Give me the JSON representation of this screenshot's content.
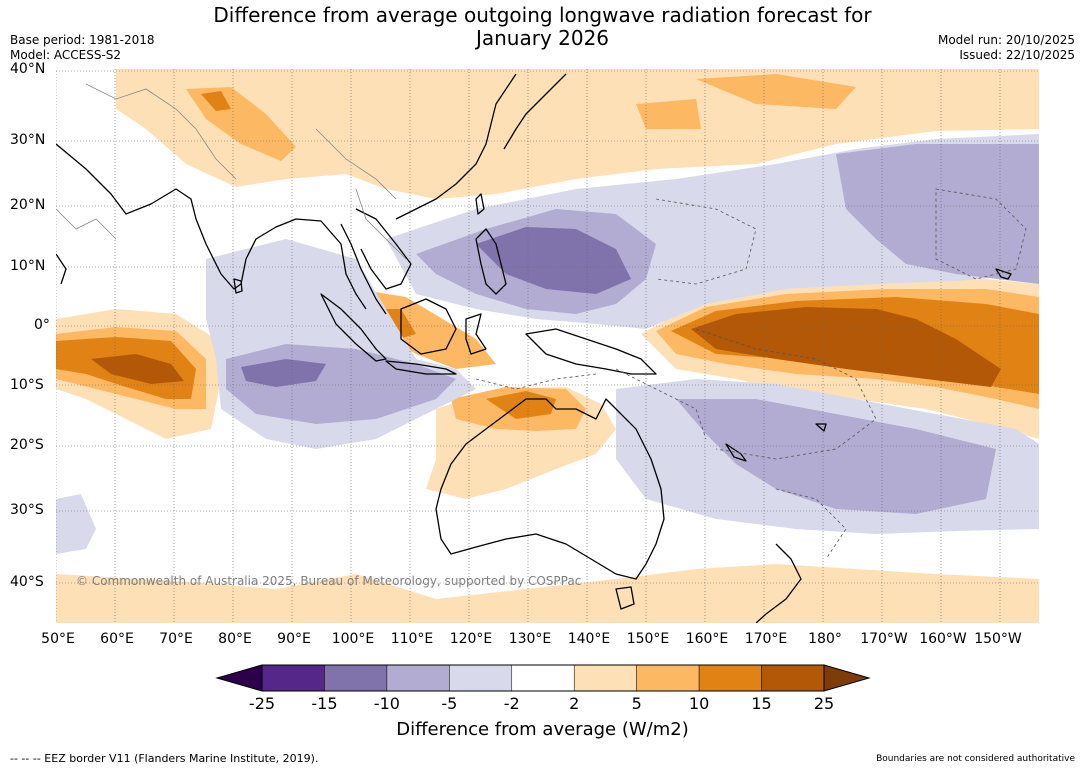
{
  "title_line1": "Difference from average outgoing longwave radiation forecast for",
  "title_line2": "January 2026",
  "meta": {
    "base_period": "Base period: 1981-2018",
    "model": "Model: ACCESS-S2",
    "model_run": "Model run: 20/10/2025",
    "issued": "Issued: 22/10/2025"
  },
  "lat_labels": [
    "40°N",
    "30°N",
    "20°N",
    "10°N",
    "0°",
    "10°S",
    "20°S",
    "30°S",
    "40°S"
  ],
  "lon_labels": [
    "50°E",
    "60°E",
    "70°E",
    "80°E",
    "90°E",
    "100°E",
    "110°E",
    "120°E",
    "130°E",
    "140°E",
    "150°E",
    "160°E",
    "170°E",
    "180°",
    "170°W",
    "160°W",
    "150°W"
  ],
  "copyright": "© Commonwealth of Australia 2025, Bureau of Meteorology, supported by COSPPac",
  "colorbar": {
    "ticks": [
      "-25",
      "-15",
      "-10",
      "-5",
      "-2",
      "2",
      "5",
      "10",
      "15",
      "25"
    ],
    "colors": [
      "#2d004b",
      "#542788",
      "#8073ac",
      "#b2abd2",
      "#d8daeb",
      "#ffffff",
      "#fee0b6",
      "#fdb863",
      "#e08214",
      "#b35806",
      "#7f3b08"
    ],
    "label": "Difference from average (W/m2)"
  },
  "eez_note": "--  --  -- EEZ border V11 (Flanders Marine Institute, 2019).",
  "boundary_note": "Boundaries are not considered authoritative"
}
